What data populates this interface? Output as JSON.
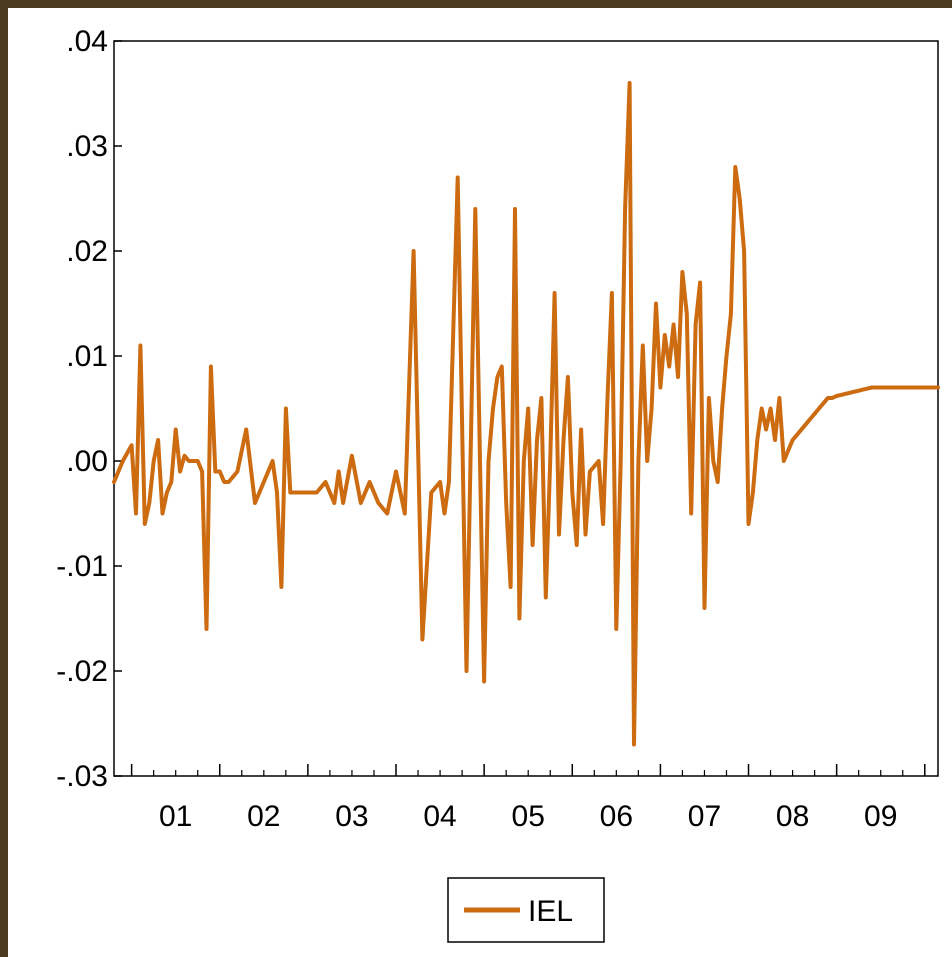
{
  "chart_data": {
    "type": "line",
    "title": "",
    "xlabel": "",
    "ylabel": "",
    "ylim": [
      -0.03,
      0.04
    ],
    "yticks": [
      ".04",
      ".03",
      ".02",
      ".01",
      ".00",
      "-.01",
      "-.02",
      "-.03"
    ],
    "ytick_values": [
      0.04,
      0.03,
      0.02,
      0.01,
      0.0,
      -0.01,
      -0.02,
      -0.03
    ],
    "xticks": [
      "01",
      "02",
      "03",
      "04",
      "05",
      "06",
      "07",
      "08",
      "09"
    ],
    "x_start": 2000.8,
    "x_end": 2010.15,
    "x_major_ticks": [
      2001,
      2002,
      2003,
      2004,
      2005,
      2006,
      2007,
      2008,
      2009,
      2010
    ],
    "grid": false,
    "legend_position": "bottom-center",
    "colors": {
      "series": "#cc6b10",
      "background": "#ffffff",
      "border": "#4a3a1e"
    },
    "series": [
      {
        "name": "IEL",
        "x": [
          2000.8,
          2000.9,
          2001.0,
          2001.05,
          2001.1,
          2001.15,
          2001.2,
          2001.25,
          2001.3,
          2001.35,
          2001.4,
          2001.45,
          2001.5,
          2001.55,
          2001.6,
          2001.65,
          2001.7,
          2001.75,
          2001.8,
          2001.85,
          2001.9,
          2001.95,
          2002.0,
          2002.05,
          2002.1,
          2002.2,
          2002.3,
          2002.4,
          2002.5,
          2002.55,
          2002.6,
          2002.65,
          2002.7,
          2002.75,
          2002.8,
          2002.85,
          2002.9,
          2003.0,
          2003.1,
          2003.2,
          2003.3,
          2003.35,
          2003.4,
          2003.5,
          2003.6,
          2003.7,
          2003.8,
          2003.9,
          2004.0,
          2004.1,
          2004.2,
          2004.3,
          2004.4,
          2004.5,
          2004.55,
          2004.6,
          2004.7,
          2004.8,
          2004.9,
          2005.0,
          2005.05,
          2005.1,
          2005.15,
          2005.2,
          2005.25,
          2005.3,
          2005.35,
          2005.4,
          2005.45,
          2005.5,
          2005.55,
          2005.6,
          2005.65,
          2005.7,
          2005.75,
          2005.8,
          2005.85,
          2005.9,
          2005.95,
          2006.0,
          2006.05,
          2006.1,
          2006.15,
          2006.2,
          2006.3,
          2006.35,
          2006.4,
          2006.45,
          2006.5,
          2006.55,
          2006.6,
          2006.65,
          2006.7,
          2006.75,
          2006.8,
          2006.85,
          2006.9,
          2006.95,
          2007.0,
          2007.05,
          2007.1,
          2007.15,
          2007.2,
          2007.25,
          2007.3,
          2007.35,
          2007.4,
          2007.45,
          2007.5,
          2007.55,
          2007.6,
          2007.65,
          2007.7,
          2007.75,
          2007.8,
          2007.85,
          2007.9,
          2007.95,
          2008.0,
          2008.05,
          2008.1,
          2008.15,
          2008.2,
          2008.25,
          2008.3,
          2008.35,
          2008.4,
          2008.45,
          2008.5,
          2008.55,
          2008.6,
          2008.65,
          2008.7,
          2008.75,
          2008.8,
          2008.85,
          2008.9,
          2008.95,
          2009.0,
          2009.05,
          2009.1,
          2009.15,
          2009.2,
          2009.25,
          2009.3,
          2009.35,
          2009.4,
          2009.45,
          2009.5,
          2009.55,
          2009.6,
          2009.65,
          2009.7,
          2009.75,
          2009.8,
          2009.85,
          2009.9,
          2009.95,
          2010.0,
          2010.05,
          2010.1,
          2010.15
        ],
        "values": [
          -0.002,
          0.0,
          0.0015,
          -0.005,
          0.011,
          -0.006,
          -0.004,
          0.0,
          0.002,
          -0.005,
          -0.003,
          -0.002,
          0.003,
          -0.001,
          0.0005,
          0.0,
          0.0,
          0.0,
          -0.001,
          -0.016,
          0.009,
          -0.001,
          -0.001,
          -0.002,
          -0.002,
          -0.001,
          0.003,
          -0.004,
          -0.002,
          -0.001,
          0.0,
          -0.003,
          -0.012,
          0.005,
          -0.003,
          -0.003,
          -0.003,
          -0.003,
          -0.003,
          -0.002,
          -0.004,
          -0.001,
          -0.004,
          0.0005,
          -0.004,
          -0.002,
          -0.004,
          -0.005,
          -0.001,
          -0.005,
          0.02,
          -0.017,
          -0.003,
          -0.002,
          -0.005,
          -0.002,
          0.027,
          -0.02,
          0.024,
          -0.021,
          0.0,
          0.005,
          0.008,
          0.009,
          -0.004,
          -0.012,
          0.024,
          -0.015,
          0.0,
          0.005,
          -0.008,
          0.002,
          0.006,
          -0.013,
          0.0,
          0.016,
          -0.007,
          0.002,
          0.008,
          -0.003,
          -0.008,
          0.003,
          -0.007,
          -0.001,
          0.0,
          -0.006,
          0.006,
          0.016,
          -0.016,
          0.0,
          0.024,
          0.036,
          -0.027,
          0.0,
          0.011,
          0.0,
          0.005,
          0.015,
          0.007,
          0.012,
          0.009,
          0.013,
          0.008,
          0.018,
          0.014,
          -0.005,
          0.013,
          0.017,
          -0.014,
          0.006,
          0.0,
          -0.002,
          0.005,
          0.01,
          0.014,
          0.028,
          0.025,
          0.02,
          -0.006,
          -0.003,
          0.002,
          0.005,
          0.003,
          0.005,
          0.002,
          0.006,
          0.0,
          0.001,
          0.002,
          0.0025,
          0.003,
          0.0035,
          0.004,
          0.0045,
          0.005,
          0.0055,
          0.006,
          0.006,
          0.0062,
          0.0063,
          0.0064,
          0.0065,
          0.0066,
          0.0067,
          0.0068,
          0.0069,
          0.007,
          0.007,
          0.007,
          0.007,
          0.007,
          0.007,
          0.007,
          0.007,
          0.007,
          0.007,
          0.007,
          0.007,
          0.007,
          0.007,
          0.007,
          0.007
        ]
      }
    ]
  },
  "legend": {
    "label": "IEL"
  }
}
